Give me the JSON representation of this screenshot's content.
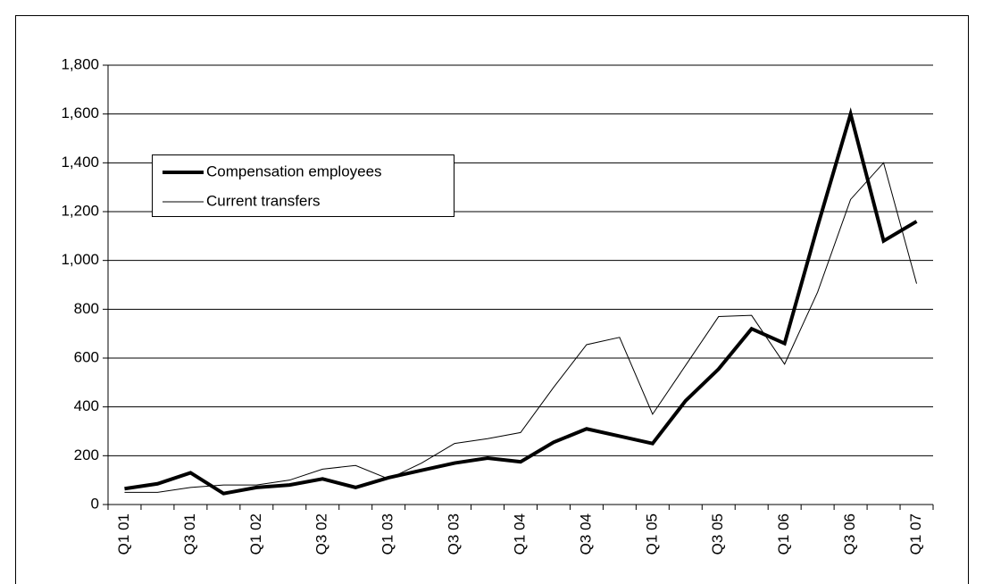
{
  "chart_data": {
    "type": "line",
    "categories": [
      "Q1 01",
      null,
      "Q3 01",
      null,
      "Q1 02",
      null,
      "Q3 02",
      null,
      "Q1 03",
      null,
      "Q3 03",
      null,
      "Q1 04",
      null,
      "Q3 04",
      null,
      "Q1 05",
      null,
      "Q3 05",
      null,
      "Q1 06",
      null,
      "Q3 06",
      null,
      "Q1 07"
    ],
    "series": [
      {
        "name": "Compensation employees",
        "color": "#000000",
        "width": 4,
        "values": [
          65,
          85,
          130,
          45,
          70,
          80,
          105,
          70,
          110,
          140,
          170,
          190,
          175,
          255,
          310,
          280,
          250,
          425,
          555,
          720,
          660,
          1140,
          1600,
          1080,
          1160
        ]
      },
      {
        "name": "Current transfers",
        "color": "#000000",
        "width": 1,
        "values": [
          50,
          50,
          70,
          80,
          80,
          100,
          145,
          160,
          105,
          170,
          250,
          270,
          295,
          480,
          655,
          685,
          370,
          570,
          770,
          775,
          575,
          870,
          1250,
          1400,
          905
        ]
      }
    ],
    "ylim": [
      0,
      1800
    ],
    "yticks": [
      0,
      200,
      400,
      600,
      800,
      {
        "value": 1000,
        "label": "1,000"
      },
      {
        "value": 1200,
        "label": "1,200"
      },
      {
        "value": 1400,
        "label": "1,400"
      },
      {
        "value": 1600,
        "label": "1,600"
      },
      {
        "value": 1800,
        "label": "1,800"
      }
    ],
    "grid": true,
    "legend": "upper left"
  }
}
